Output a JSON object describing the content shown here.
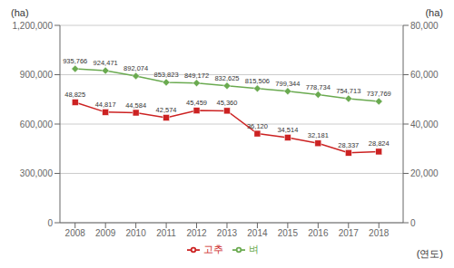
{
  "chart_data": {
    "type": "line",
    "x": [
      2008,
      2009,
      2010,
      2011,
      2012,
      2013,
      2014,
      2015,
      2016,
      2017,
      2018
    ],
    "xlim": [
      2007.5,
      2018.8
    ],
    "xticks": [
      2008,
      2009,
      2010,
      2011,
      2012,
      2013,
      2014,
      2015,
      2016,
      2017,
      2018
    ],
    "xlabel": "(연도)",
    "ylabel": "(ha)",
    "y2label": "(ha)",
    "ylim": [
      0,
      1200000
    ],
    "yticks": [
      0,
      {
        "value": 300000,
        "label": "300,000"
      },
      {
        "value": 600000,
        "label": "600,000"
      },
      {
        "value": 900000,
        "label": "900,000"
      },
      {
        "value": 1200000,
        "label": "1,200,000"
      }
    ],
    "y2lim": [
      0,
      80000
    ],
    "y2ticks": [
      0,
      {
        "value": 20000,
        "label": "20,000"
      },
      {
        "value": 40000,
        "label": "40,000"
      },
      {
        "value": 60000,
        "label": "60,000"
      },
      {
        "value": 80000,
        "label": "80,000"
      }
    ],
    "grid": true,
    "legend": "bottom",
    "data_labels": true,
    "series": [
      {
        "name": "벼",
        "color": "#6aaa50",
        "marker": "diamond",
        "values": [
          935766,
          924471,
          892074,
          853823,
          849172,
          832625,
          815506,
          799344,
          778734,
          754713,
          737769
        ],
        "value_labels": [
          "935,766",
          "924,471",
          "892,074",
          "853,823",
          "849,172",
          "832,625",
          "815,506",
          "799,344",
          "778,734",
          "754,713",
          "737,769"
        ]
      },
      {
        "name": "고추",
        "color": "#cc2222",
        "marker": "square",
        "axis": "y2",
        "values": [
          48825,
          44817,
          44584,
          42574,
          45459,
          45360,
          36120,
          34514,
          32181,
          28337,
          28824
        ],
        "value_labels": [
          "48,825",
          "44,817",
          "44,584",
          "42,574",
          "45,459",
          "45,360",
          "36,120",
          "34,514",
          "32,181",
          "28,337",
          "28,824"
        ]
      }
    ]
  }
}
